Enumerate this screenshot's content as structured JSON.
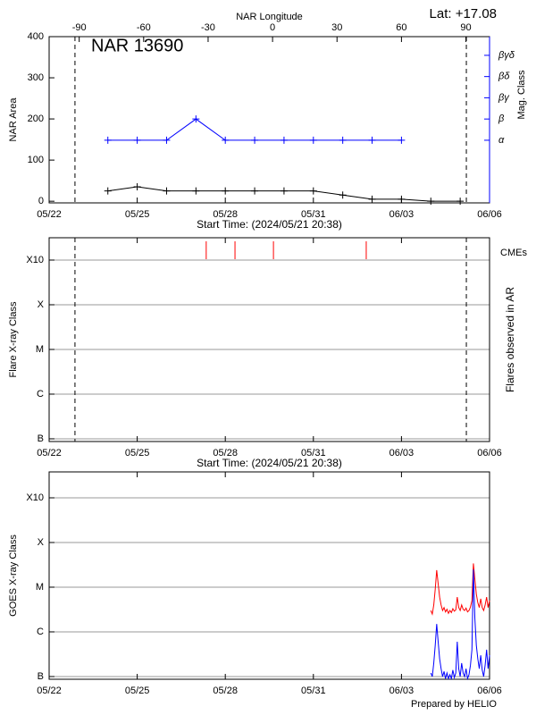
{
  "chart_data": [
    {
      "type": "line",
      "title": "NAR 13690",
      "annotation": "Lat: +17.08",
      "x_label": "Start Time: (2024/05/21 20:38)",
      "y_label": "NAR Area",
      "y2_label": "Mag. Class",
      "x2_label": "NAR Longitude",
      "xlim": [
        22,
        37
      ],
      "xticks": [
        {
          "value": 22,
          "label": "05/22"
        },
        {
          "value": 25,
          "label": "05/25"
        },
        {
          "value": 28,
          "label": "05/28"
        },
        {
          "value": 31,
          "label": "05/31"
        },
        {
          "value": 34,
          "label": "06/03"
        },
        {
          "value": 37,
          "label": "06/06"
        }
      ],
      "x2lim": [
        -104,
        101
      ],
      "x2ticks": [
        -90,
        -60,
        -30,
        0,
        30,
        60,
        90
      ],
      "ylim": [
        -4,
        400
      ],
      "yticks": [
        0,
        100,
        200,
        300,
        400
      ],
      "y2lim": [
        -1.95,
        5.88
      ],
      "y2ticks": [
        {
          "value": 1,
          "label": "α"
        },
        {
          "value": 2,
          "label": "β"
        },
        {
          "value": 3,
          "label": "βγ"
        },
        {
          "value": 4,
          "label": "βδ"
        },
        {
          "value": 5,
          "label": "βγδ"
        }
      ],
      "y2color": "#0000ff",
      "marker": "+",
      "grid": false,
      "limbs": [
        22.88,
        36.21
      ],
      "series": [
        {
          "color": "#000000",
          "x": [
            24,
            25,
            26,
            27,
            28,
            29,
            30,
            31,
            32,
            33,
            34,
            35,
            36
          ],
          "values": [
            25,
            35,
            25,
            25,
            25,
            25,
            25,
            25,
            15,
            5,
            5,
            0,
            0
          ]
        },
        {
          "color": "#0000ff",
          "axis": "y2",
          "x": [
            24,
            25,
            26,
            27,
            28,
            29,
            30,
            31,
            32,
            33,
            34
          ],
          "values": [
            1,
            1,
            1,
            2,
            1,
            1,
            1,
            1,
            1,
            1,
            1
          ]
        }
      ]
    },
    {
      "type": "event",
      "x_label": "Start Time: (2024/05/21 20:38)",
      "y_label": "Flare X-ray Class",
      "y2_label": "Flares observed in AR",
      "xlim": [
        22,
        37
      ],
      "xticks": [
        {
          "value": 22,
          "label": "05/22"
        },
        {
          "value": 25,
          "label": "05/25"
        },
        {
          "value": 28,
          "label": "05/28"
        },
        {
          "value": 31,
          "label": "05/31"
        },
        {
          "value": 34,
          "label": "06/03"
        },
        {
          "value": 37,
          "label": "06/06"
        }
      ],
      "log": true,
      "ylim": [
        8.7e-08,
        0.00316
      ],
      "yticks": [
        {
          "value": 1e-07,
          "label": "B"
        },
        {
          "value": 1e-06,
          "label": "C"
        },
        {
          "value": 1e-05,
          "label": "M"
        },
        {
          "value": 0.0001,
          "label": "X"
        },
        {
          "value": 0.001,
          "label": "X10"
        }
      ],
      "grid": true,
      "limbs": [
        22.88,
        36.21
      ],
      "series": [
        {
          "name": "CMEs",
          "color": "#ff0000",
          "x": [
            27.35,
            28.33,
            29.64,
            32.8
          ]
        }
      ]
    },
    {
      "type": "line",
      "y_label": "GOES X-ray Class",
      "xlim": [
        22,
        37
      ],
      "xticks": [
        {
          "value": 22,
          "label": "05/22"
        },
        {
          "value": 25,
          "label": "05/25"
        },
        {
          "value": 28,
          "label": "05/28"
        },
        {
          "value": 31,
          "label": "05/31"
        },
        {
          "value": 34,
          "label": "06/03"
        },
        {
          "value": 37,
          "label": "06/06"
        }
      ],
      "log": true,
      "ylim": [
        8.7e-08,
        0.0038
      ],
      "yticks": [
        {
          "value": 1e-07,
          "label": "B"
        },
        {
          "value": 1e-06,
          "label": "C"
        },
        {
          "value": 1e-05,
          "label": "M"
        },
        {
          "value": 0.0001,
          "label": "X"
        },
        {
          "value": 0.001,
          "label": "X10"
        }
      ],
      "grid": true,
      "series": [
        {
          "color": "#ff0000",
          "x": [
            35,
            35.05,
            35.1,
            35.15,
            35.2,
            35.25,
            35.3,
            35.35,
            35.4,
            35.45,
            35.5,
            35.55,
            35.6,
            35.65,
            35.7,
            35.75,
            35.8,
            35.85,
            35.9,
            35.95,
            36,
            36.05,
            36.1,
            36.15,
            36.2,
            36.25,
            36.3,
            36.35,
            36.4,
            36.45,
            36.5,
            36.55,
            36.6,
            36.65,
            36.7,
            36.75,
            36.8,
            36.85,
            36.9,
            36.95,
            37
          ],
          "values": [
            3e-06,
            2.5e-06,
            4e-06,
            9e-06,
            2.4e-05,
            1.2e-05,
            6e-06,
            4e-06,
            3e-06,
            3.5e-06,
            2.8e-06,
            3.2e-06,
            2.6e-06,
            3e-06,
            2.7e-06,
            3.3e-06,
            2.9e-06,
            3.1e-06,
            6e-06,
            3.5e-06,
            3e-06,
            4e-06,
            3.2e-06,
            3e-06,
            3.4e-06,
            2.8e-06,
            3e-06,
            3.6e-06,
            5e-06,
            3.4e-05,
            1.5e-05,
            7e-06,
            4.5e-06,
            3.5e-06,
            5.5e-06,
            3.5e-06,
            3e-06,
            4e-06,
            6e-06,
            3.5e-06,
            5e-06
          ]
        },
        {
          "color": "#0000ff",
          "x": [
            35,
            35.05,
            35.1,
            35.15,
            35.2,
            35.25,
            35.3,
            35.35,
            35.4,
            35.45,
            35.5,
            35.55,
            35.6,
            35.65,
            35.7,
            35.75,
            35.8,
            35.85,
            35.9,
            35.95,
            36,
            36.05,
            36.1,
            36.15,
            36.2,
            36.25,
            36.3,
            36.35,
            36.4,
            36.45,
            36.5,
            36.55,
            36.6,
            36.65,
            36.7,
            36.75,
            36.8,
            36.85,
            36.9,
            36.95,
            37
          ],
          "values": [
            1.2e-07,
            1e-07,
            2e-07,
            5e-07,
            1.5e-06,
            6e-07,
            2.5e-07,
            1.5e-07,
            1e-07,
            1.3e-07,
            9e-08,
            1.2e-07,
            9e-08,
            1.1e-07,
            9e-08,
            1.4e-07,
            9.5e-08,
            1.2e-07,
            6e-07,
            1.5e-07,
            1e-07,
            2e-07,
            1.2e-07,
            1e-07,
            1.5e-07,
            9e-08,
            1.1e-07,
            1.8e-07,
            4e-07,
            2.5e-05,
            2e-06,
            5e-07,
            2.5e-07,
            1.5e-07,
            3e-07,
            1.4e-07,
            1e-07,
            1.8e-07,
            4e-07,
            1.5e-07,
            3e-07
          ]
        }
      ]
    }
  ],
  "footer": "Prepared by HELIO"
}
